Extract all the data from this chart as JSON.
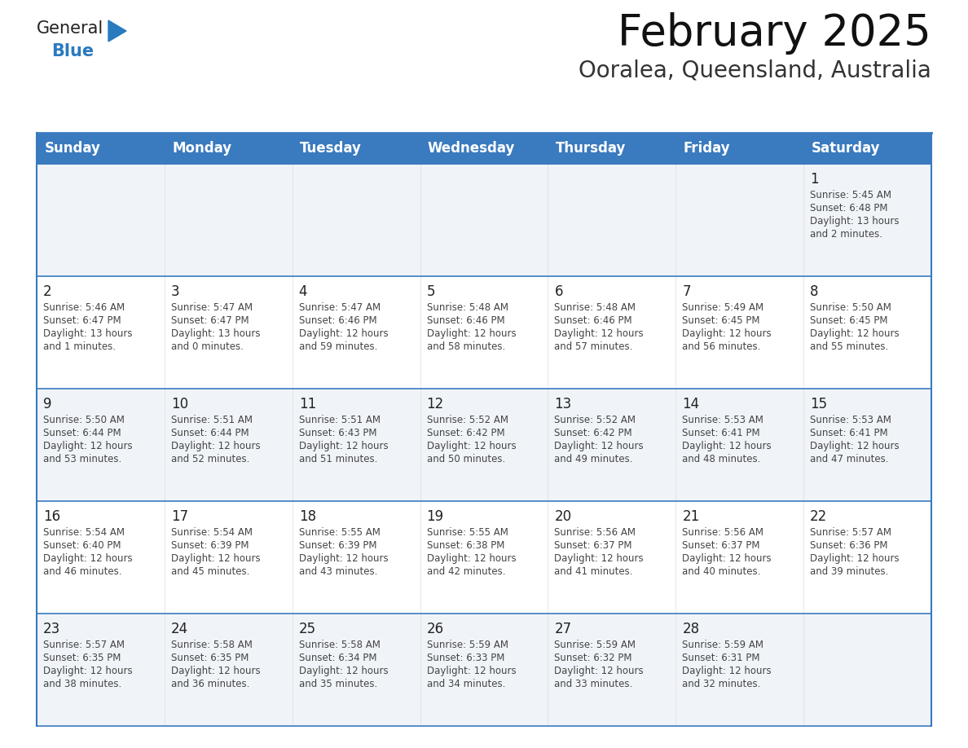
{
  "title": "February 2025",
  "subtitle": "Ooralea, Queensland, Australia",
  "header_color": "#3a7abf",
  "header_text_color": "#ffffff",
  "border_color": "#3a7abf",
  "row_separator_color": "#3a7abf",
  "text_color": "#444444",
  "date_color": "#222222",
  "day_headers": [
    "Sunday",
    "Monday",
    "Tuesday",
    "Wednesday",
    "Thursday",
    "Friday",
    "Saturday"
  ],
  "logo_general_color": "#222222",
  "logo_blue_color": "#2a7abf",
  "days": [
    {
      "date": 1,
      "col": 6,
      "row": 0,
      "sunrise": "5:45 AM",
      "sunset": "6:48 PM",
      "daylight_hours": 13,
      "daylight_minutes": 2
    },
    {
      "date": 2,
      "col": 0,
      "row": 1,
      "sunrise": "5:46 AM",
      "sunset": "6:47 PM",
      "daylight_hours": 13,
      "daylight_minutes": 1
    },
    {
      "date": 3,
      "col": 1,
      "row": 1,
      "sunrise": "5:47 AM",
      "sunset": "6:47 PM",
      "daylight_hours": 13,
      "daylight_minutes": 0
    },
    {
      "date": 4,
      "col": 2,
      "row": 1,
      "sunrise": "5:47 AM",
      "sunset": "6:46 PM",
      "daylight_hours": 12,
      "daylight_minutes": 59
    },
    {
      "date": 5,
      "col": 3,
      "row": 1,
      "sunrise": "5:48 AM",
      "sunset": "6:46 PM",
      "daylight_hours": 12,
      "daylight_minutes": 58
    },
    {
      "date": 6,
      "col": 4,
      "row": 1,
      "sunrise": "5:48 AM",
      "sunset": "6:46 PM",
      "daylight_hours": 12,
      "daylight_minutes": 57
    },
    {
      "date": 7,
      "col": 5,
      "row": 1,
      "sunrise": "5:49 AM",
      "sunset": "6:45 PM",
      "daylight_hours": 12,
      "daylight_minutes": 56
    },
    {
      "date": 8,
      "col": 6,
      "row": 1,
      "sunrise": "5:50 AM",
      "sunset": "6:45 PM",
      "daylight_hours": 12,
      "daylight_minutes": 55
    },
    {
      "date": 9,
      "col": 0,
      "row": 2,
      "sunrise": "5:50 AM",
      "sunset": "6:44 PM",
      "daylight_hours": 12,
      "daylight_minutes": 53
    },
    {
      "date": 10,
      "col": 1,
      "row": 2,
      "sunrise": "5:51 AM",
      "sunset": "6:44 PM",
      "daylight_hours": 12,
      "daylight_minutes": 52
    },
    {
      "date": 11,
      "col": 2,
      "row": 2,
      "sunrise": "5:51 AM",
      "sunset": "6:43 PM",
      "daylight_hours": 12,
      "daylight_minutes": 51
    },
    {
      "date": 12,
      "col": 3,
      "row": 2,
      "sunrise": "5:52 AM",
      "sunset": "6:42 PM",
      "daylight_hours": 12,
      "daylight_minutes": 50
    },
    {
      "date": 13,
      "col": 4,
      "row": 2,
      "sunrise": "5:52 AM",
      "sunset": "6:42 PM",
      "daylight_hours": 12,
      "daylight_minutes": 49
    },
    {
      "date": 14,
      "col": 5,
      "row": 2,
      "sunrise": "5:53 AM",
      "sunset": "6:41 PM",
      "daylight_hours": 12,
      "daylight_minutes": 48
    },
    {
      "date": 15,
      "col": 6,
      "row": 2,
      "sunrise": "5:53 AM",
      "sunset": "6:41 PM",
      "daylight_hours": 12,
      "daylight_minutes": 47
    },
    {
      "date": 16,
      "col": 0,
      "row": 3,
      "sunrise": "5:54 AM",
      "sunset": "6:40 PM",
      "daylight_hours": 12,
      "daylight_minutes": 46
    },
    {
      "date": 17,
      "col": 1,
      "row": 3,
      "sunrise": "5:54 AM",
      "sunset": "6:39 PM",
      "daylight_hours": 12,
      "daylight_minutes": 45
    },
    {
      "date": 18,
      "col": 2,
      "row": 3,
      "sunrise": "5:55 AM",
      "sunset": "6:39 PM",
      "daylight_hours": 12,
      "daylight_minutes": 43
    },
    {
      "date": 19,
      "col": 3,
      "row": 3,
      "sunrise": "5:55 AM",
      "sunset": "6:38 PM",
      "daylight_hours": 12,
      "daylight_minutes": 42
    },
    {
      "date": 20,
      "col": 4,
      "row": 3,
      "sunrise": "5:56 AM",
      "sunset": "6:37 PM",
      "daylight_hours": 12,
      "daylight_minutes": 41
    },
    {
      "date": 21,
      "col": 5,
      "row": 3,
      "sunrise": "5:56 AM",
      "sunset": "6:37 PM",
      "daylight_hours": 12,
      "daylight_minutes": 40
    },
    {
      "date": 22,
      "col": 6,
      "row": 3,
      "sunrise": "5:57 AM",
      "sunset": "6:36 PM",
      "daylight_hours": 12,
      "daylight_minutes": 39
    },
    {
      "date": 23,
      "col": 0,
      "row": 4,
      "sunrise": "5:57 AM",
      "sunset": "6:35 PM",
      "daylight_hours": 12,
      "daylight_minutes": 38
    },
    {
      "date": 24,
      "col": 1,
      "row": 4,
      "sunrise": "5:58 AM",
      "sunset": "6:35 PM",
      "daylight_hours": 12,
      "daylight_minutes": 36
    },
    {
      "date": 25,
      "col": 2,
      "row": 4,
      "sunrise": "5:58 AM",
      "sunset": "6:34 PM",
      "daylight_hours": 12,
      "daylight_minutes": 35
    },
    {
      "date": 26,
      "col": 3,
      "row": 4,
      "sunrise": "5:59 AM",
      "sunset": "6:33 PM",
      "daylight_hours": 12,
      "daylight_minutes": 34
    },
    {
      "date": 27,
      "col": 4,
      "row": 4,
      "sunrise": "5:59 AM",
      "sunset": "6:32 PM",
      "daylight_hours": 12,
      "daylight_minutes": 33
    },
    {
      "date": 28,
      "col": 5,
      "row": 4,
      "sunrise": "5:59 AM",
      "sunset": "6:31 PM",
      "daylight_hours": 12,
      "daylight_minutes": 32
    }
  ]
}
